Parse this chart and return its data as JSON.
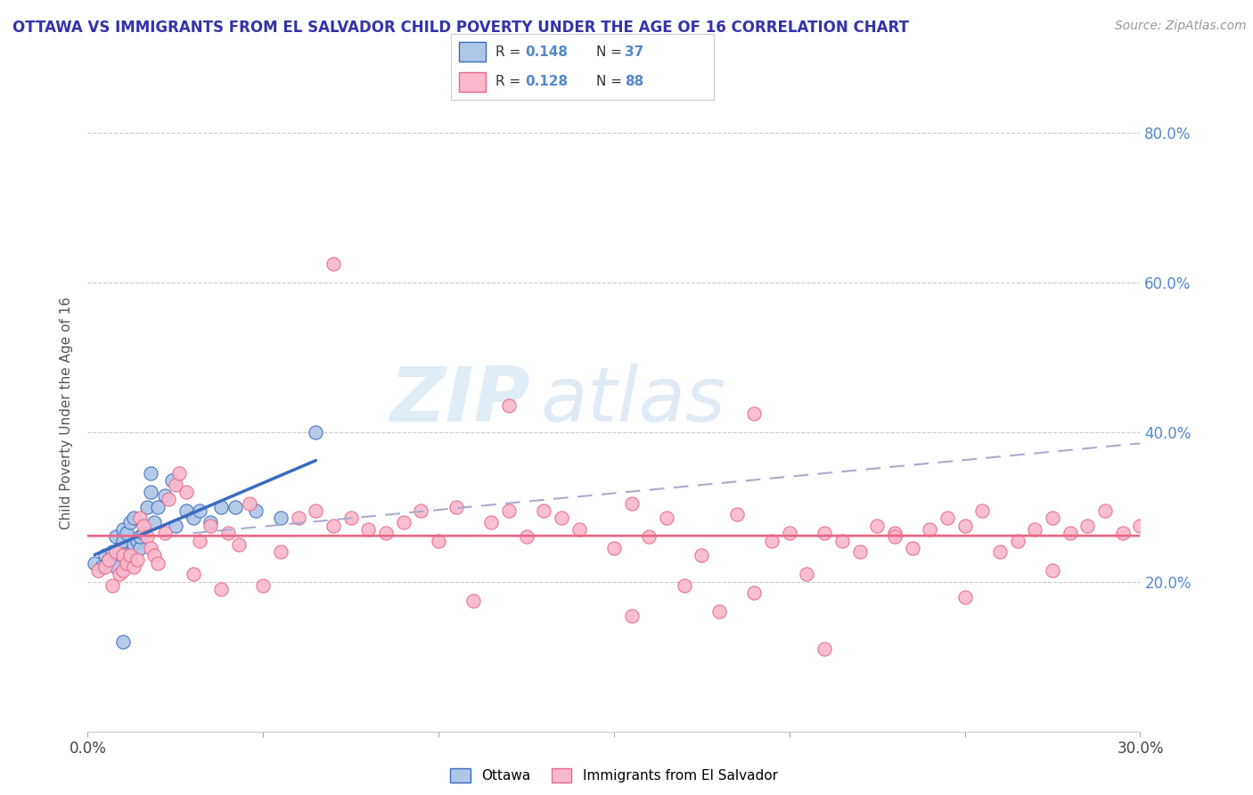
{
  "title": "OTTAWA VS IMMIGRANTS FROM EL SALVADOR CHILD POVERTY UNDER THE AGE OF 16 CORRELATION CHART",
  "source": "Source: ZipAtlas.com",
  "ylabel": "Child Poverty Under the Age of 16",
  "x_min": 0.0,
  "x_max": 0.3,
  "y_min": 0.0,
  "y_max": 0.85,
  "r_ottawa": 0.148,
  "n_ottawa": 37,
  "r_salvador": 0.128,
  "n_salvador": 88,
  "color_ottawa": "#aec6e8",
  "color_salvador": "#f9b8cc",
  "line_color_ottawa": "#3a6bbf",
  "line_color_salvador": "#e8678a",
  "dash_color": "#aaaacc",
  "watermark_zip": "ZIP",
  "watermark_atlas": "atlas",
  "legend_labels": [
    "Ottawa",
    "Immigrants from El Salvador"
  ],
  "ottawa_x": [
    0.002,
    0.004,
    0.005,
    0.006,
    0.007,
    0.008,
    0.008,
    0.009,
    0.01,
    0.01,
    0.011,
    0.012,
    0.012,
    0.013,
    0.013,
    0.014,
    0.015,
    0.015,
    0.016,
    0.017,
    0.018,
    0.018,
    0.019,
    0.02,
    0.022,
    0.024,
    0.025,
    0.028,
    0.03,
    0.032,
    0.035,
    0.038,
    0.042,
    0.048,
    0.055,
    0.065,
    0.01
  ],
  "ottawa_y": [
    0.225,
    0.22,
    0.235,
    0.23,
    0.24,
    0.22,
    0.26,
    0.245,
    0.255,
    0.27,
    0.265,
    0.23,
    0.28,
    0.25,
    0.285,
    0.255,
    0.245,
    0.26,
    0.265,
    0.3,
    0.32,
    0.345,
    0.28,
    0.3,
    0.315,
    0.335,
    0.275,
    0.295,
    0.285,
    0.295,
    0.28,
    0.3,
    0.3,
    0.295,
    0.285,
    0.4,
    0.12
  ],
  "salvador_x": [
    0.003,
    0.005,
    0.006,
    0.007,
    0.008,
    0.009,
    0.01,
    0.01,
    0.011,
    0.012,
    0.013,
    0.014,
    0.015,
    0.016,
    0.017,
    0.018,
    0.019,
    0.02,
    0.022,
    0.023,
    0.025,
    0.026,
    0.028,
    0.03,
    0.032,
    0.035,
    0.038,
    0.04,
    0.043,
    0.046,
    0.05,
    0.055,
    0.06,
    0.065,
    0.07,
    0.075,
    0.08,
    0.085,
    0.09,
    0.095,
    0.1,
    0.105,
    0.11,
    0.115,
    0.12,
    0.125,
    0.13,
    0.135,
    0.14,
    0.15,
    0.155,
    0.16,
    0.165,
    0.17,
    0.175,
    0.18,
    0.185,
    0.19,
    0.195,
    0.2,
    0.205,
    0.21,
    0.215,
    0.22,
    0.225,
    0.23,
    0.235,
    0.24,
    0.245,
    0.25,
    0.255,
    0.26,
    0.265,
    0.27,
    0.275,
    0.28,
    0.285,
    0.29,
    0.295,
    0.3,
    0.07,
    0.12,
    0.155,
    0.19,
    0.21,
    0.23,
    0.25,
    0.275
  ],
  "salvador_y": [
    0.215,
    0.22,
    0.23,
    0.195,
    0.24,
    0.21,
    0.235,
    0.215,
    0.225,
    0.235,
    0.22,
    0.23,
    0.285,
    0.275,
    0.26,
    0.245,
    0.235,
    0.225,
    0.265,
    0.31,
    0.33,
    0.345,
    0.32,
    0.21,
    0.255,
    0.275,
    0.19,
    0.265,
    0.25,
    0.305,
    0.195,
    0.24,
    0.285,
    0.295,
    0.275,
    0.285,
    0.27,
    0.265,
    0.28,
    0.295,
    0.255,
    0.3,
    0.175,
    0.28,
    0.295,
    0.26,
    0.295,
    0.285,
    0.27,
    0.245,
    0.305,
    0.26,
    0.285,
    0.195,
    0.235,
    0.16,
    0.29,
    0.185,
    0.255,
    0.265,
    0.21,
    0.265,
    0.255,
    0.24,
    0.275,
    0.265,
    0.245,
    0.27,
    0.285,
    0.275,
    0.295,
    0.24,
    0.255,
    0.27,
    0.285,
    0.265,
    0.275,
    0.295,
    0.265,
    0.275,
    0.625,
    0.435,
    0.155,
    0.425,
    0.11,
    0.26,
    0.18,
    0.215
  ]
}
